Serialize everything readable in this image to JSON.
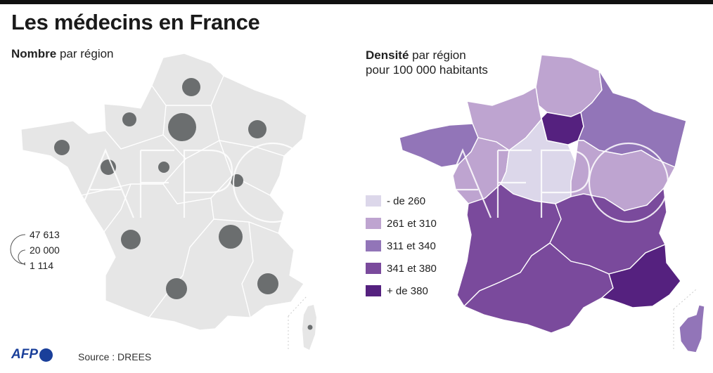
{
  "title": "Les médecins en France",
  "left_panel": {
    "subtitle_bold": "Nombre",
    "subtitle_rest": " par région",
    "scale": {
      "labels": [
        "47 613",
        "20 000",
        "1 114"
      ],
      "values": [
        47613,
        20000,
        1114
      ]
    },
    "circle_color": "#6b6e6f",
    "land_color": "#e6e6e6"
  },
  "right_panel": {
    "subtitle_bold": "Densité",
    "subtitle_rest": " par région",
    "subtitle_line2": "pour 100 000 habitants",
    "legend": [
      {
        "label": "- de 260",
        "color": "#dcd7ea"
      },
      {
        "label": "261 et 310",
        "color": "#bea4d0"
      },
      {
        "label": "311 et 340",
        "color": "#9275b8"
      },
      {
        "label": "341 et 380",
        "color": "#7a4a9c"
      },
      {
        "label": "+ de 380",
        "color": "#55217f"
      }
    ]
  },
  "footer": {
    "logo": "AFP",
    "source": "Source : DREES"
  }
}
